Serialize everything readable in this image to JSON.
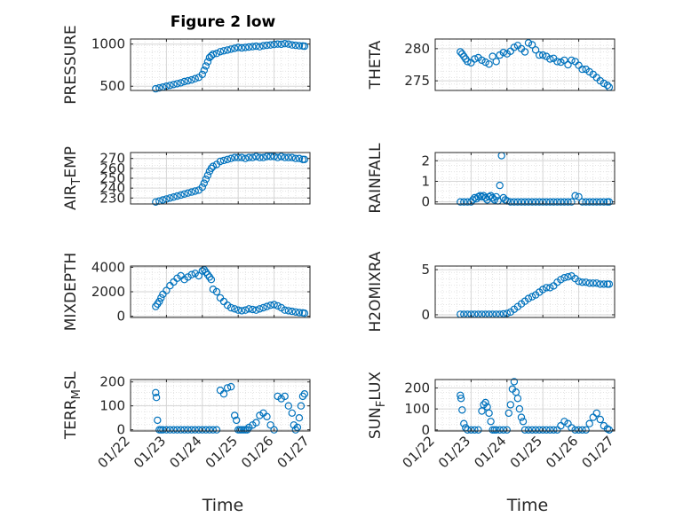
{
  "figure_title": "Figure 2 low",
  "x_axis_label": "Time",
  "x_tick_labels": [
    "01/22",
    "01/23",
    "01/24",
    "01/25",
    "01/26",
    "01/27"
  ],
  "colors": {
    "marker": "#0072bd",
    "axis": "#262626",
    "grid": "#dcdcdc",
    "background": "#ffffff"
  },
  "chart_data": [
    {
      "type": "scatter",
      "id": "pressure",
      "ylabel": "PRESSURE",
      "xlim": [
        0,
        5
      ],
      "ylim": [
        450,
        1060
      ],
      "yticks": [
        500,
        1000
      ],
      "ytick_labels": [
        "500",
        "1000"
      ],
      "x": [
        0.7,
        0.8,
        0.9,
        1.0,
        1.1,
        1.2,
        1.3,
        1.4,
        1.5,
        1.6,
        1.7,
        1.8,
        1.9,
        2.0,
        2.05,
        2.1,
        2.15,
        2.2,
        2.25,
        2.3,
        2.4,
        2.5,
        2.6,
        2.7,
        2.8,
        2.9,
        3.0,
        3.1,
        3.2,
        3.3,
        3.4,
        3.5,
        3.6,
        3.7,
        3.8,
        3.9,
        4.0,
        4.1,
        4.2,
        4.3,
        4.4,
        4.5,
        4.6,
        4.7,
        4.8,
        4.85
      ],
      "y": [
        470,
        480,
        490,
        500,
        510,
        520,
        530,
        540,
        555,
        565,
        575,
        590,
        605,
        640,
        690,
        740,
        790,
        840,
        860,
        880,
        890,
        910,
        920,
        930,
        940,
        950,
        960,
        955,
        960,
        965,
        970,
        975,
        968,
        980,
        985,
        990,
        995,
        1000,
        998,
        1005,
        1000,
        990,
        985,
        980,
        978,
        975
      ]
    },
    {
      "type": "scatter",
      "id": "theta",
      "ylabel": "THETA",
      "xlim": [
        0,
        5
      ],
      "ylim": [
        273.5,
        281.5
      ],
      "yticks": [
        275,
        280
      ],
      "ytick_labels": [
        "275",
        "280"
      ],
      "x": [
        0.7,
        0.75,
        0.8,
        0.85,
        0.9,
        1.0,
        1.1,
        1.2,
        1.3,
        1.4,
        1.5,
        1.6,
        1.7,
        1.8,
        1.9,
        2.0,
        2.1,
        2.2,
        2.3,
        2.4,
        2.5,
        2.6,
        2.7,
        2.8,
        2.9,
        3.0,
        3.1,
        3.2,
        3.3,
        3.4,
        3.5,
        3.6,
        3.7,
        3.8,
        3.9,
        4.0,
        4.1,
        4.2,
        4.3,
        4.4,
        4.5,
        4.6,
        4.7,
        4.8,
        4.85
      ],
      "y": [
        279.5,
        279.2,
        278.8,
        278.4,
        278.0,
        277.8,
        278.4,
        278.6,
        278.2,
        277.9,
        277.6,
        278.8,
        278.0,
        279.0,
        279.4,
        279.2,
        279.6,
        280.2,
        280.5,
        280.0,
        279.5,
        280.9,
        280.6,
        279.8,
        279.0,
        279.0,
        278.8,
        278.4,
        278.5,
        278.0,
        277.9,
        278.2,
        277.5,
        278.2,
        278.0,
        277.4,
        276.8,
        276.8,
        276.4,
        276.0,
        275.5,
        275.0,
        274.6,
        274.3,
        274.0
      ]
    },
    {
      "type": "scatter",
      "id": "air_temp",
      "ylabel": "AIR_TEMP",
      "xlim": [
        0,
        5
      ],
      "ylim": [
        224,
        276
      ],
      "yticks": [
        230,
        240,
        250,
        260,
        270
      ],
      "ytick_labels": [
        "230",
        "240",
        "250",
        "260",
        "270"
      ],
      "x": [
        0.7,
        0.8,
        0.9,
        1.0,
        1.1,
        1.2,
        1.3,
        1.4,
        1.5,
        1.6,
        1.7,
        1.8,
        1.9,
        2.0,
        2.05,
        2.1,
        2.15,
        2.2,
        2.25,
        2.3,
        2.4,
        2.5,
        2.6,
        2.7,
        2.8,
        2.9,
        3.0,
        3.1,
        3.2,
        3.3,
        3.4,
        3.5,
        3.6,
        3.7,
        3.8,
        3.9,
        4.0,
        4.1,
        4.2,
        4.3,
        4.4,
        4.5,
        4.6,
        4.7,
        4.8,
        4.85
      ],
      "y": [
        226,
        227,
        228,
        229,
        230,
        231,
        232,
        233,
        234,
        235,
        236,
        237,
        238,
        241,
        245,
        249,
        253,
        257,
        260,
        262,
        264,
        267,
        268,
        269,
        270,
        271,
        271,
        271,
        270,
        271,
        271,
        272,
        271,
        271,
        272,
        272,
        272,
        271,
        272,
        271,
        271,
        271,
        270,
        270,
        269,
        269
      ]
    },
    {
      "type": "scatter",
      "id": "rainfall",
      "ylabel": "RAINFALL",
      "xlim": [
        0,
        5
      ],
      "ylim": [
        -0.1,
        2.4
      ],
      "yticks": [
        0,
        1,
        2
      ],
      "ytick_labels": [
        "0",
        "1",
        "2"
      ],
      "x": [
        0.7,
        0.8,
        0.9,
        1.0,
        1.05,
        1.1,
        1.15,
        1.2,
        1.25,
        1.3,
        1.35,
        1.4,
        1.45,
        1.5,
        1.55,
        1.6,
        1.65,
        1.7,
        1.75,
        1.8,
        1.85,
        1.9,
        1.95,
        2.0,
        2.1,
        2.2,
        2.3,
        2.4,
        2.5,
        2.6,
        2.7,
        2.8,
        2.9,
        3.0,
        3.1,
        3.2,
        3.3,
        3.4,
        3.5,
        3.6,
        3.7,
        3.8,
        3.9,
        4.0,
        4.1,
        4.2,
        4.3,
        4.4,
        4.5,
        4.6,
        4.7,
        4.8,
        4.85
      ],
      "y": [
        0,
        0,
        0,
        0,
        0.1,
        0.2,
        0.15,
        0.25,
        0.3,
        0.25,
        0.3,
        0.2,
        0.1,
        0.25,
        0.3,
        0.2,
        0.1,
        0.25,
        0.05,
        0.8,
        2.25,
        0.2,
        0.1,
        0.05,
        0,
        0,
        0,
        0,
        0,
        0,
        0,
        0,
        0,
        0,
        0,
        0,
        0,
        0,
        0,
        0,
        0,
        0,
        0.3,
        0.25,
        0,
        0,
        0,
        0,
        0,
        0,
        0,
        0,
        0
      ]
    },
    {
      "type": "scatter",
      "id": "mixdepth",
      "ylabel": "MIXDEPTH",
      "xlim": [
        0,
        5
      ],
      "ylim": [
        -100,
        4100
      ],
      "yticks": [
        0,
        2000,
        4000
      ],
      "ytick_labels": [
        "0",
        "2000",
        "4000"
      ],
      "x": [
        0.7,
        0.75,
        0.8,
        0.85,
        0.9,
        1.0,
        1.1,
        1.2,
        1.3,
        1.4,
        1.5,
        1.6,
        1.7,
        1.8,
        1.9,
        2.0,
        2.05,
        2.1,
        2.15,
        2.2,
        2.25,
        2.3,
        2.4,
        2.5,
        2.6,
        2.7,
        2.8,
        2.9,
        3.0,
        3.1,
        3.2,
        3.3,
        3.4,
        3.5,
        3.6,
        3.7,
        3.8,
        3.9,
        4.0,
        4.1,
        4.2,
        4.3,
        4.4,
        4.5,
        4.6,
        4.7,
        4.8,
        4.85
      ],
      "y": [
        800,
        1000,
        1200,
        1500,
        1800,
        2100,
        2500,
        2800,
        3100,
        3300,
        3000,
        3200,
        3400,
        3500,
        3300,
        3700,
        3800,
        3600,
        3400,
        3200,
        3000,
        2200,
        2000,
        1500,
        1200,
        900,
        700,
        600,
        500,
        450,
        500,
        600,
        550,
        500,
        600,
        700,
        800,
        900,
        950,
        850,
        700,
        500,
        450,
        400,
        350,
        300,
        280,
        250
      ]
    },
    {
      "type": "scatter",
      "id": "h2omixra",
      "ylabel": "H2OMIXRA",
      "xlim": [
        0,
        5
      ],
      "ylim": [
        -0.3,
        5.4
      ],
      "yticks": [
        0,
        5
      ],
      "ytick_labels": [
        "0",
        "5"
      ],
      "x": [
        0.7,
        0.8,
        0.9,
        1.0,
        1.1,
        1.2,
        1.3,
        1.4,
        1.5,
        1.6,
        1.7,
        1.8,
        1.9,
        2.0,
        2.1,
        2.2,
        2.3,
        2.4,
        2.5,
        2.6,
        2.7,
        2.8,
        2.9,
        3.0,
        3.1,
        3.2,
        3.3,
        3.4,
        3.5,
        3.6,
        3.7,
        3.8,
        3.9,
        4.0,
        4.1,
        4.2,
        4.3,
        4.4,
        4.5,
        4.6,
        4.7,
        4.8,
        4.85
      ],
      "y": [
        0.05,
        0.05,
        0.05,
        0.05,
        0.05,
        0.05,
        0.05,
        0.05,
        0.05,
        0.05,
        0.05,
        0.05,
        0.1,
        0.15,
        0.3,
        0.6,
        0.9,
        1.2,
        1.5,
        1.8,
        2.0,
        2.2,
        2.5,
        2.8,
        3.0,
        3.0,
        3.2,
        3.6,
        3.9,
        4.1,
        4.2,
        4.3,
        4.0,
        3.7,
        3.6,
        3.6,
        3.5,
        3.5,
        3.5,
        3.4,
        3.4,
        3.4,
        3.4
      ]
    },
    {
      "type": "scatter",
      "id": "terr_msl",
      "ylabel": "TERR_MSL",
      "xlim": [
        0,
        5
      ],
      "ylim": [
        -5,
        210
      ],
      "yticks": [
        0,
        100,
        200
      ],
      "ytick_labels": [
        "0",
        "100",
        "200"
      ],
      "x": [
        0.7,
        0.72,
        0.75,
        0.8,
        0.85,
        0.9,
        1.0,
        1.1,
        1.2,
        1.3,
        1.4,
        1.5,
        1.6,
        1.7,
        1.8,
        1.9,
        2.0,
        2.1,
        2.2,
        2.3,
        2.4,
        2.5,
        2.6,
        2.7,
        2.8,
        2.9,
        2.95,
        3.0,
        3.05,
        3.1,
        3.15,
        3.2,
        3.25,
        3.3,
        3.4,
        3.5,
        3.6,
        3.7,
        3.8,
        3.9,
        4.0,
        4.1,
        4.2,
        4.3,
        4.4,
        4.5,
        4.55,
        4.6,
        4.65,
        4.7,
        4.75,
        4.8,
        4.85
      ],
      "y": [
        155,
        135,
        40,
        0,
        0,
        0,
        0,
        0,
        0,
        0,
        0,
        0,
        0,
        0,
        0,
        0,
        0,
        0,
        0,
        0,
        0,
        165,
        150,
        175,
        180,
        60,
        40,
        0,
        0,
        0,
        0,
        0,
        0,
        10,
        20,
        30,
        60,
        70,
        55,
        20,
        0,
        140,
        130,
        140,
        100,
        70,
        20,
        0,
        10,
        50,
        100,
        140,
        150
      ]
    },
    {
      "type": "scatter",
      "id": "sun_flux",
      "ylabel": "SUN_FLUX",
      "xlim": [
        0,
        5
      ],
      "ylim": [
        -5,
        240
      ],
      "yticks": [
        0,
        100,
        200
      ],
      "ytick_labels": [
        "0",
        "100",
        "200"
      ],
      "x": [
        0.7,
        0.72,
        0.75,
        0.8,
        0.85,
        0.9,
        1.0,
        1.1,
        1.2,
        1.3,
        1.35,
        1.4,
        1.45,
        1.5,
        1.55,
        1.6,
        1.65,
        1.7,
        1.8,
        1.9,
        2.0,
        2.05,
        2.1,
        2.15,
        2.2,
        2.25,
        2.3,
        2.35,
        2.4,
        2.45,
        2.5,
        2.6,
        2.7,
        2.8,
        2.9,
        3.0,
        3.1,
        3.2,
        3.3,
        3.4,
        3.5,
        3.6,
        3.7,
        3.8,
        3.9,
        4.0,
        4.1,
        4.2,
        4.3,
        4.4,
        4.5,
        4.6,
        4.7,
        4.8,
        4.85
      ],
      "y": [
        165,
        150,
        95,
        30,
        10,
        0,
        0,
        0,
        0,
        90,
        120,
        130,
        110,
        80,
        40,
        0,
        0,
        0,
        0,
        0,
        0,
        80,
        120,
        195,
        230,
        180,
        150,
        100,
        60,
        40,
        0,
        0,
        0,
        0,
        0,
        0,
        0,
        0,
        0,
        0,
        20,
        40,
        30,
        10,
        0,
        0,
        0,
        0,
        30,
        60,
        80,
        50,
        20,
        5,
        0
      ]
    }
  ]
}
